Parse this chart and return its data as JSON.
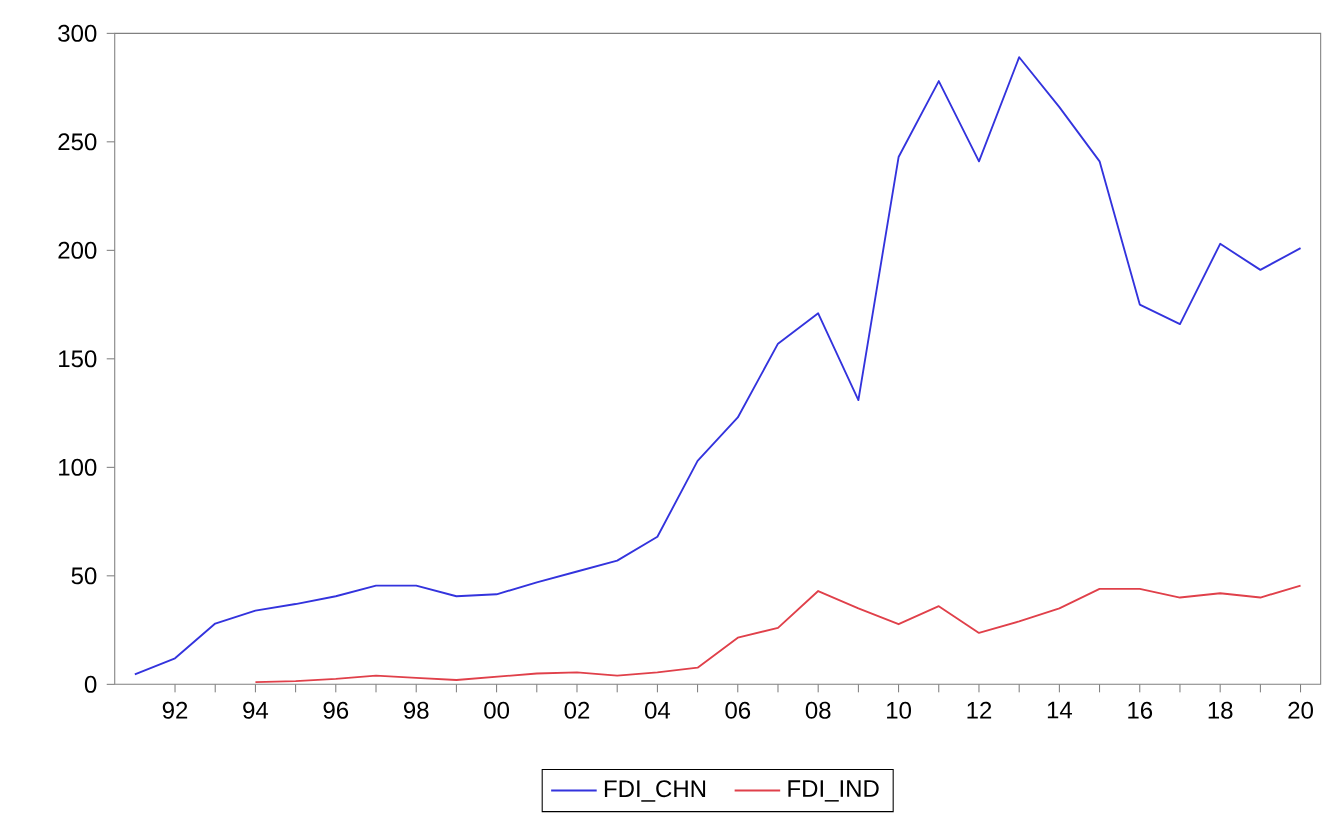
{
  "chart_data": {
    "type": "line",
    "x": [
      1991,
      1992,
      1993,
      1994,
      1995,
      1996,
      1997,
      1998,
      1999,
      2000,
      2001,
      2002,
      2003,
      2004,
      2005,
      2006,
      2007,
      2008,
      2009,
      2010,
      2011,
      2012,
      2013,
      2014,
      2015,
      2016,
      2017,
      2018,
      2019,
      2020
    ],
    "series": [
      {
        "name": "FDI_CHN",
        "color": "#3333dd",
        "values": [
          4.6,
          12,
          28,
          34,
          37,
          40.6,
          45.5,
          45.5,
          40.6,
          41.5,
          47,
          52,
          57,
          68,
          103,
          123,
          157,
          171,
          131,
          243,
          278,
          241,
          289,
          266,
          241,
          175,
          166,
          203,
          191,
          201
        ]
      },
      {
        "name": "FDI_IND",
        "color": "#e0404a",
        "values": [
          null,
          null,
          null,
          1,
          1.5,
          2.5,
          4,
          3,
          2,
          3.5,
          5,
          5.5,
          4,
          5.5,
          7.7,
          21.5,
          26,
          43,
          35,
          27.7,
          36,
          23.7,
          29,
          35,
          44,
          44,
          40,
          42,
          40,
          45.5
        ]
      }
    ],
    "xlim": [
      1990.5,
      2020.5
    ],
    "ylim": [
      0,
      300
    ],
    "xticks": [
      {
        "value": 1992,
        "label": "92"
      },
      {
        "value": 1993,
        "label": null
      },
      {
        "value": 1994,
        "label": "94"
      },
      {
        "value": 1995,
        "label": null
      },
      {
        "value": 1996,
        "label": "96"
      },
      {
        "value": 1997,
        "label": null
      },
      {
        "value": 1998,
        "label": "98"
      },
      {
        "value": 1999,
        "label": null
      },
      {
        "value": 2000,
        "label": "00"
      },
      {
        "value": 2001,
        "label": null
      },
      {
        "value": 2002,
        "label": "02"
      },
      {
        "value": 2003,
        "label": null
      },
      {
        "value": 2004,
        "label": "04"
      },
      {
        "value": 2005,
        "label": null
      },
      {
        "value": 2006,
        "label": "06"
      },
      {
        "value": 2007,
        "label": null
      },
      {
        "value": 2008,
        "label": "08"
      },
      {
        "value": 2009,
        "label": null
      },
      {
        "value": 2010,
        "label": "10"
      },
      {
        "value": 2011,
        "label": null
      },
      {
        "value": 2012,
        "label": "12"
      },
      {
        "value": 2013,
        "label": null
      },
      {
        "value": 2014,
        "label": "14"
      },
      {
        "value": 2015,
        "label": null
      },
      {
        "value": 2016,
        "label": "16"
      },
      {
        "value": 2017,
        "label": null
      },
      {
        "value": 2018,
        "label": "18"
      },
      {
        "value": 2019,
        "label": null
      },
      {
        "value": 2020,
        "label": "20"
      }
    ],
    "yticks": [
      0,
      50,
      100,
      150,
      200,
      250,
      300
    ],
    "legend": "bottom",
    "grid": false,
    "marker": "none",
    "line_style": "solid"
  }
}
